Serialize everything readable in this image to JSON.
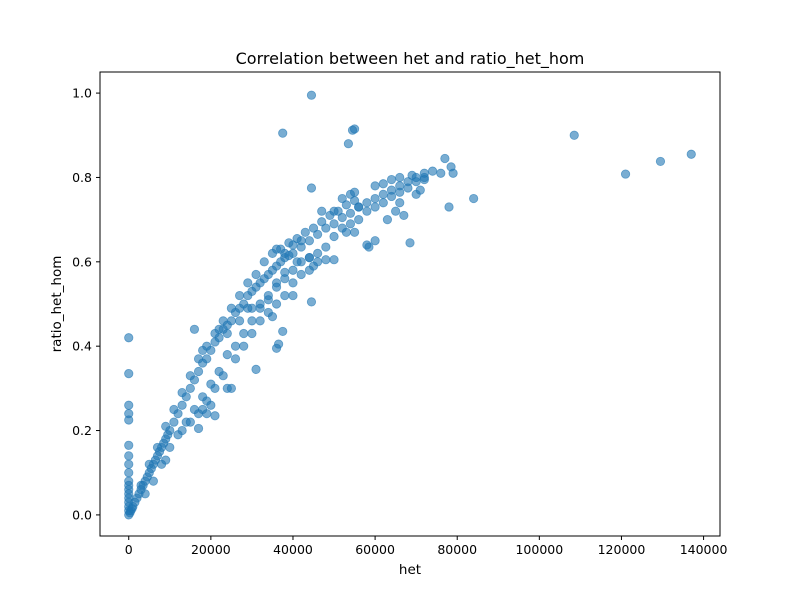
{
  "chart_data": {
    "type": "scatter",
    "title": "Correlation between het and ratio_het_hom",
    "xlabel": "het",
    "ylabel": "ratio_het_hom",
    "xlim": [
      -7000,
      144000
    ],
    "ylim": [
      -0.05,
      1.05
    ],
    "x_ticks": [
      0,
      20000,
      40000,
      60000,
      80000,
      100000,
      120000,
      140000
    ],
    "x_tick_labels": [
      "0",
      "20000",
      "40000",
      "60000",
      "80000",
      "100000",
      "120000",
      "140000"
    ],
    "y_ticks": [
      0.0,
      0.2,
      0.4,
      0.6,
      0.8,
      1.0
    ],
    "y_tick_labels": [
      "0.0",
      "0.2",
      "0.4",
      "0.6",
      "0.8",
      "1.0"
    ],
    "grid": false,
    "legend": "none",
    "marker_color": "#1f77b4",
    "marker_alpha": 0.6,
    "series": [
      {
        "points": [
          [
            0,
            0.0
          ],
          [
            0,
            0.01
          ],
          [
            0,
            0.02
          ],
          [
            0,
            0.03
          ],
          [
            0,
            0.04
          ],
          [
            0,
            0.05
          ],
          [
            0,
            0.06
          ],
          [
            0,
            0.07
          ],
          [
            0,
            0.08
          ],
          [
            0,
            0.1
          ],
          [
            0,
            0.12
          ],
          [
            0,
            0.14
          ],
          [
            0,
            0.165
          ],
          [
            0,
            0.225
          ],
          [
            0,
            0.24
          ],
          [
            0,
            0.26
          ],
          [
            0,
            0.335
          ],
          [
            0,
            0.42
          ],
          [
            300,
            0.005
          ],
          [
            500,
            0.01
          ],
          [
            800,
            0.015
          ],
          [
            1000,
            0.02
          ],
          [
            1500,
            0.03
          ],
          [
            2000,
            0.04
          ],
          [
            2500,
            0.05
          ],
          [
            3000,
            0.06
          ],
          [
            3500,
            0.07
          ],
          [
            4000,
            0.08
          ],
          [
            4500,
            0.09
          ],
          [
            5000,
            0.1
          ],
          [
            5500,
            0.11
          ],
          [
            6000,
            0.12
          ],
          [
            6500,
            0.13
          ],
          [
            7000,
            0.14
          ],
          [
            7500,
            0.15
          ],
          [
            8000,
            0.16
          ],
          [
            8500,
            0.17
          ],
          [
            9000,
            0.18
          ],
          [
            9500,
            0.19
          ],
          [
            10000,
            0.2
          ],
          [
            11000,
            0.22
          ],
          [
            12000,
            0.24
          ],
          [
            13000,
            0.26
          ],
          [
            14000,
            0.28
          ],
          [
            15000,
            0.3
          ],
          [
            16000,
            0.32
          ],
          [
            17000,
            0.34
          ],
          [
            18000,
            0.36
          ],
          [
            19000,
            0.37
          ],
          [
            20000,
            0.39
          ],
          [
            21000,
            0.41
          ],
          [
            22000,
            0.42
          ],
          [
            23000,
            0.44
          ],
          [
            24000,
            0.45
          ],
          [
            25000,
            0.46
          ],
          [
            26000,
            0.48
          ],
          [
            27000,
            0.49
          ],
          [
            28000,
            0.5
          ],
          [
            29000,
            0.52
          ],
          [
            30000,
            0.53
          ],
          [
            31000,
            0.54
          ],
          [
            32000,
            0.55
          ],
          [
            33000,
            0.56
          ],
          [
            34000,
            0.57
          ],
          [
            35000,
            0.58
          ],
          [
            36000,
            0.59
          ],
          [
            37000,
            0.6
          ],
          [
            38000,
            0.61
          ],
          [
            39000,
            0.615
          ],
          [
            40000,
            0.62
          ],
          [
            42000,
            0.635
          ],
          [
            44000,
            0.65
          ],
          [
            46000,
            0.665
          ],
          [
            48000,
            0.68
          ],
          [
            50000,
            0.69
          ],
          [
            52000,
            0.705
          ],
          [
            54000,
            0.715
          ],
          [
            56000,
            0.73
          ],
          [
            58000,
            0.74
          ],
          [
            60000,
            0.75
          ],
          [
            62000,
            0.76
          ],
          [
            64000,
            0.77
          ],
          [
            66000,
            0.78
          ],
          [
            68000,
            0.79
          ],
          [
            70000,
            0.8
          ],
          [
            72000,
            0.81
          ],
          [
            4000,
            0.05
          ],
          [
            6000,
            0.08
          ],
          [
            8000,
            0.12
          ],
          [
            9000,
            0.13
          ],
          [
            10000,
            0.16
          ],
          [
            12000,
            0.19
          ],
          [
            14000,
            0.22
          ],
          [
            16000,
            0.25
          ],
          [
            18000,
            0.28
          ],
          [
            20000,
            0.31
          ],
          [
            22000,
            0.34
          ],
          [
            24000,
            0.38
          ],
          [
            26000,
            0.4
          ],
          [
            28000,
            0.43
          ],
          [
            30000,
            0.46
          ],
          [
            32000,
            0.49
          ],
          [
            34000,
            0.51
          ],
          [
            36000,
            0.54
          ],
          [
            38000,
            0.56
          ],
          [
            40000,
            0.58
          ],
          [
            42000,
            0.6
          ],
          [
            44000,
            0.61
          ],
          [
            46000,
            0.62
          ],
          [
            48000,
            0.635
          ],
          [
            50000,
            0.66
          ],
          [
            52000,
            0.68
          ],
          [
            54000,
            0.69
          ],
          [
            56000,
            0.7
          ],
          [
            58000,
            0.72
          ],
          [
            60000,
            0.73
          ],
          [
            62000,
            0.74
          ],
          [
            64000,
            0.755
          ],
          [
            66000,
            0.765
          ],
          [
            68000,
            0.775
          ],
          [
            70000,
            0.79
          ],
          [
            3000,
            0.07
          ],
          [
            5000,
            0.12
          ],
          [
            7000,
            0.16
          ],
          [
            9000,
            0.21
          ],
          [
            11000,
            0.25
          ],
          [
            13000,
            0.29
          ],
          [
            15000,
            0.33
          ],
          [
            17000,
            0.37
          ],
          [
            19000,
            0.4
          ],
          [
            21000,
            0.43
          ],
          [
            23000,
            0.46
          ],
          [
            25000,
            0.49
          ],
          [
            27000,
            0.52
          ],
          [
            29000,
            0.55
          ],
          [
            31000,
            0.57
          ],
          [
            33000,
            0.6
          ],
          [
            35000,
            0.62
          ],
          [
            37000,
            0.63
          ],
          [
            39000,
            0.645
          ],
          [
            41000,
            0.655
          ],
          [
            43000,
            0.67
          ],
          [
            45000,
            0.68
          ],
          [
            47000,
            0.695
          ],
          [
            49000,
            0.71
          ],
          [
            51000,
            0.72
          ],
          [
            53000,
            0.735
          ],
          [
            55000,
            0.745
          ],
          [
            13000,
            0.2
          ],
          [
            15000,
            0.22
          ],
          [
            17000,
            0.24
          ],
          [
            19000,
            0.27
          ],
          [
            21000,
            0.3
          ],
          [
            23000,
            0.33
          ],
          [
            25000,
            0.3
          ],
          [
            24000,
            0.3
          ],
          [
            26000,
            0.37
          ],
          [
            28000,
            0.4
          ],
          [
            30000,
            0.43
          ],
          [
            32000,
            0.46
          ],
          [
            34000,
            0.48
          ],
          [
            36000,
            0.5
          ],
          [
            38000,
            0.52
          ],
          [
            40000,
            0.55
          ],
          [
            42000,
            0.57
          ],
          [
            44000,
            0.58
          ],
          [
            46000,
            0.6
          ],
          [
            48000,
            0.605
          ],
          [
            50000,
            0.605
          ],
          [
            17000,
            0.205
          ],
          [
            18000,
            0.25
          ],
          [
            19000,
            0.24
          ],
          [
            20000,
            0.26
          ],
          [
            21000,
            0.235
          ],
          [
            31000,
            0.345
          ],
          [
            36000,
            0.395
          ],
          [
            36500,
            0.405
          ],
          [
            35000,
            0.47
          ],
          [
            40000,
            0.52
          ],
          [
            44500,
            0.505
          ],
          [
            37500,
            0.435
          ],
          [
            16000,
            0.44
          ],
          [
            18000,
            0.39
          ],
          [
            22000,
            0.44
          ],
          [
            24000,
            0.43
          ],
          [
            27000,
            0.46
          ],
          [
            29000,
            0.49
          ],
          [
            47000,
            0.72
          ],
          [
            50000,
            0.72
          ],
          [
            53000,
            0.67
          ],
          [
            55000,
            0.67
          ],
          [
            58000,
            0.64
          ],
          [
            58500,
            0.635
          ],
          [
            60000,
            0.65
          ],
          [
            63000,
            0.7
          ],
          [
            65000,
            0.72
          ],
          [
            66000,
            0.74
          ],
          [
            67000,
            0.71
          ],
          [
            68500,
            0.645
          ],
          [
            70000,
            0.76
          ],
          [
            71000,
            0.77
          ],
          [
            72000,
            0.8
          ],
          [
            74000,
            0.815
          ],
          [
            76000,
            0.81
          ],
          [
            77000,
            0.845
          ],
          [
            78000,
            0.73
          ],
          [
            78500,
            0.825
          ],
          [
            79000,
            0.81
          ],
          [
            84000,
            0.75
          ],
          [
            36000,
            0.63
          ],
          [
            38000,
            0.62
          ],
          [
            40000,
            0.64
          ],
          [
            42000,
            0.65
          ],
          [
            44000,
            0.61
          ],
          [
            45000,
            0.59
          ],
          [
            30000,
            0.49
          ],
          [
            32000,
            0.5
          ],
          [
            34000,
            0.52
          ],
          [
            36000,
            0.55
          ],
          [
            38000,
            0.575
          ],
          [
            41000,
            0.6
          ],
          [
            52000,
            0.75
          ],
          [
            54000,
            0.76
          ],
          [
            55000,
            0.765
          ],
          [
            56000,
            0.73
          ],
          [
            60000,
            0.78
          ],
          [
            62000,
            0.785
          ],
          [
            64000,
            0.795
          ],
          [
            66000,
            0.8
          ],
          [
            69000,
            0.805
          ],
          [
            72000,
            0.795
          ],
          [
            37500,
            0.905
          ],
          [
            44500,
            0.995
          ],
          [
            53500,
            0.88
          ],
          [
            54500,
            0.912
          ],
          [
            55000,
            0.915
          ],
          [
            44500,
            0.775
          ],
          [
            108500,
            0.9
          ],
          [
            121000,
            0.808
          ],
          [
            129500,
            0.838
          ],
          [
            137000,
            0.855
          ]
        ]
      }
    ]
  }
}
